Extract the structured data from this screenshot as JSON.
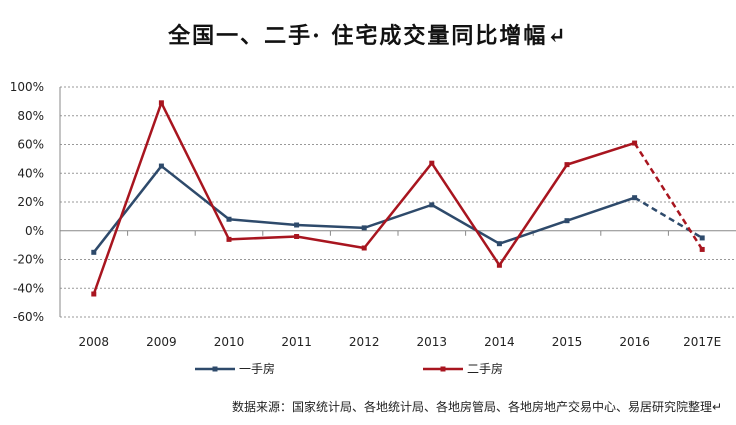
{
  "title": "全国一、二手· 住宅成交量同比增幅↵",
  "source": "数据来源：国家统计局、各地统计局、各地房管局、各地房地产交易中心、易居研究院整理↵",
  "chart_data": {
    "type": "line",
    "title": "全国一、二手· 住宅成交量同比增幅",
    "xlabel": "",
    "ylabel": "",
    "categories": [
      "2008",
      "2009",
      "2010",
      "2011",
      "2012",
      "2013",
      "2014",
      "2015",
      "2016",
      "2017E"
    ],
    "yticks": [
      "100%",
      "80%",
      "60%",
      "40%",
      "20%",
      "0%",
      "-20%",
      "-40%",
      "-60%"
    ],
    "ylim": [
      -60,
      100
    ],
    "grid": true,
    "legend": "bottom",
    "dashed_from_index": 8,
    "series": [
      {
        "name": "一手房",
        "color": "#2e4a6b",
        "values": [
          -15,
          45,
          8,
          4,
          2,
          18,
          -9,
          7,
          23,
          -5
        ]
      },
      {
        "name": "二手房",
        "color": "#a8151f",
        "values": [
          -44,
          89,
          -6,
          -4,
          -12,
          47,
          -24,
          46,
          61,
          -13
        ]
      }
    ]
  }
}
